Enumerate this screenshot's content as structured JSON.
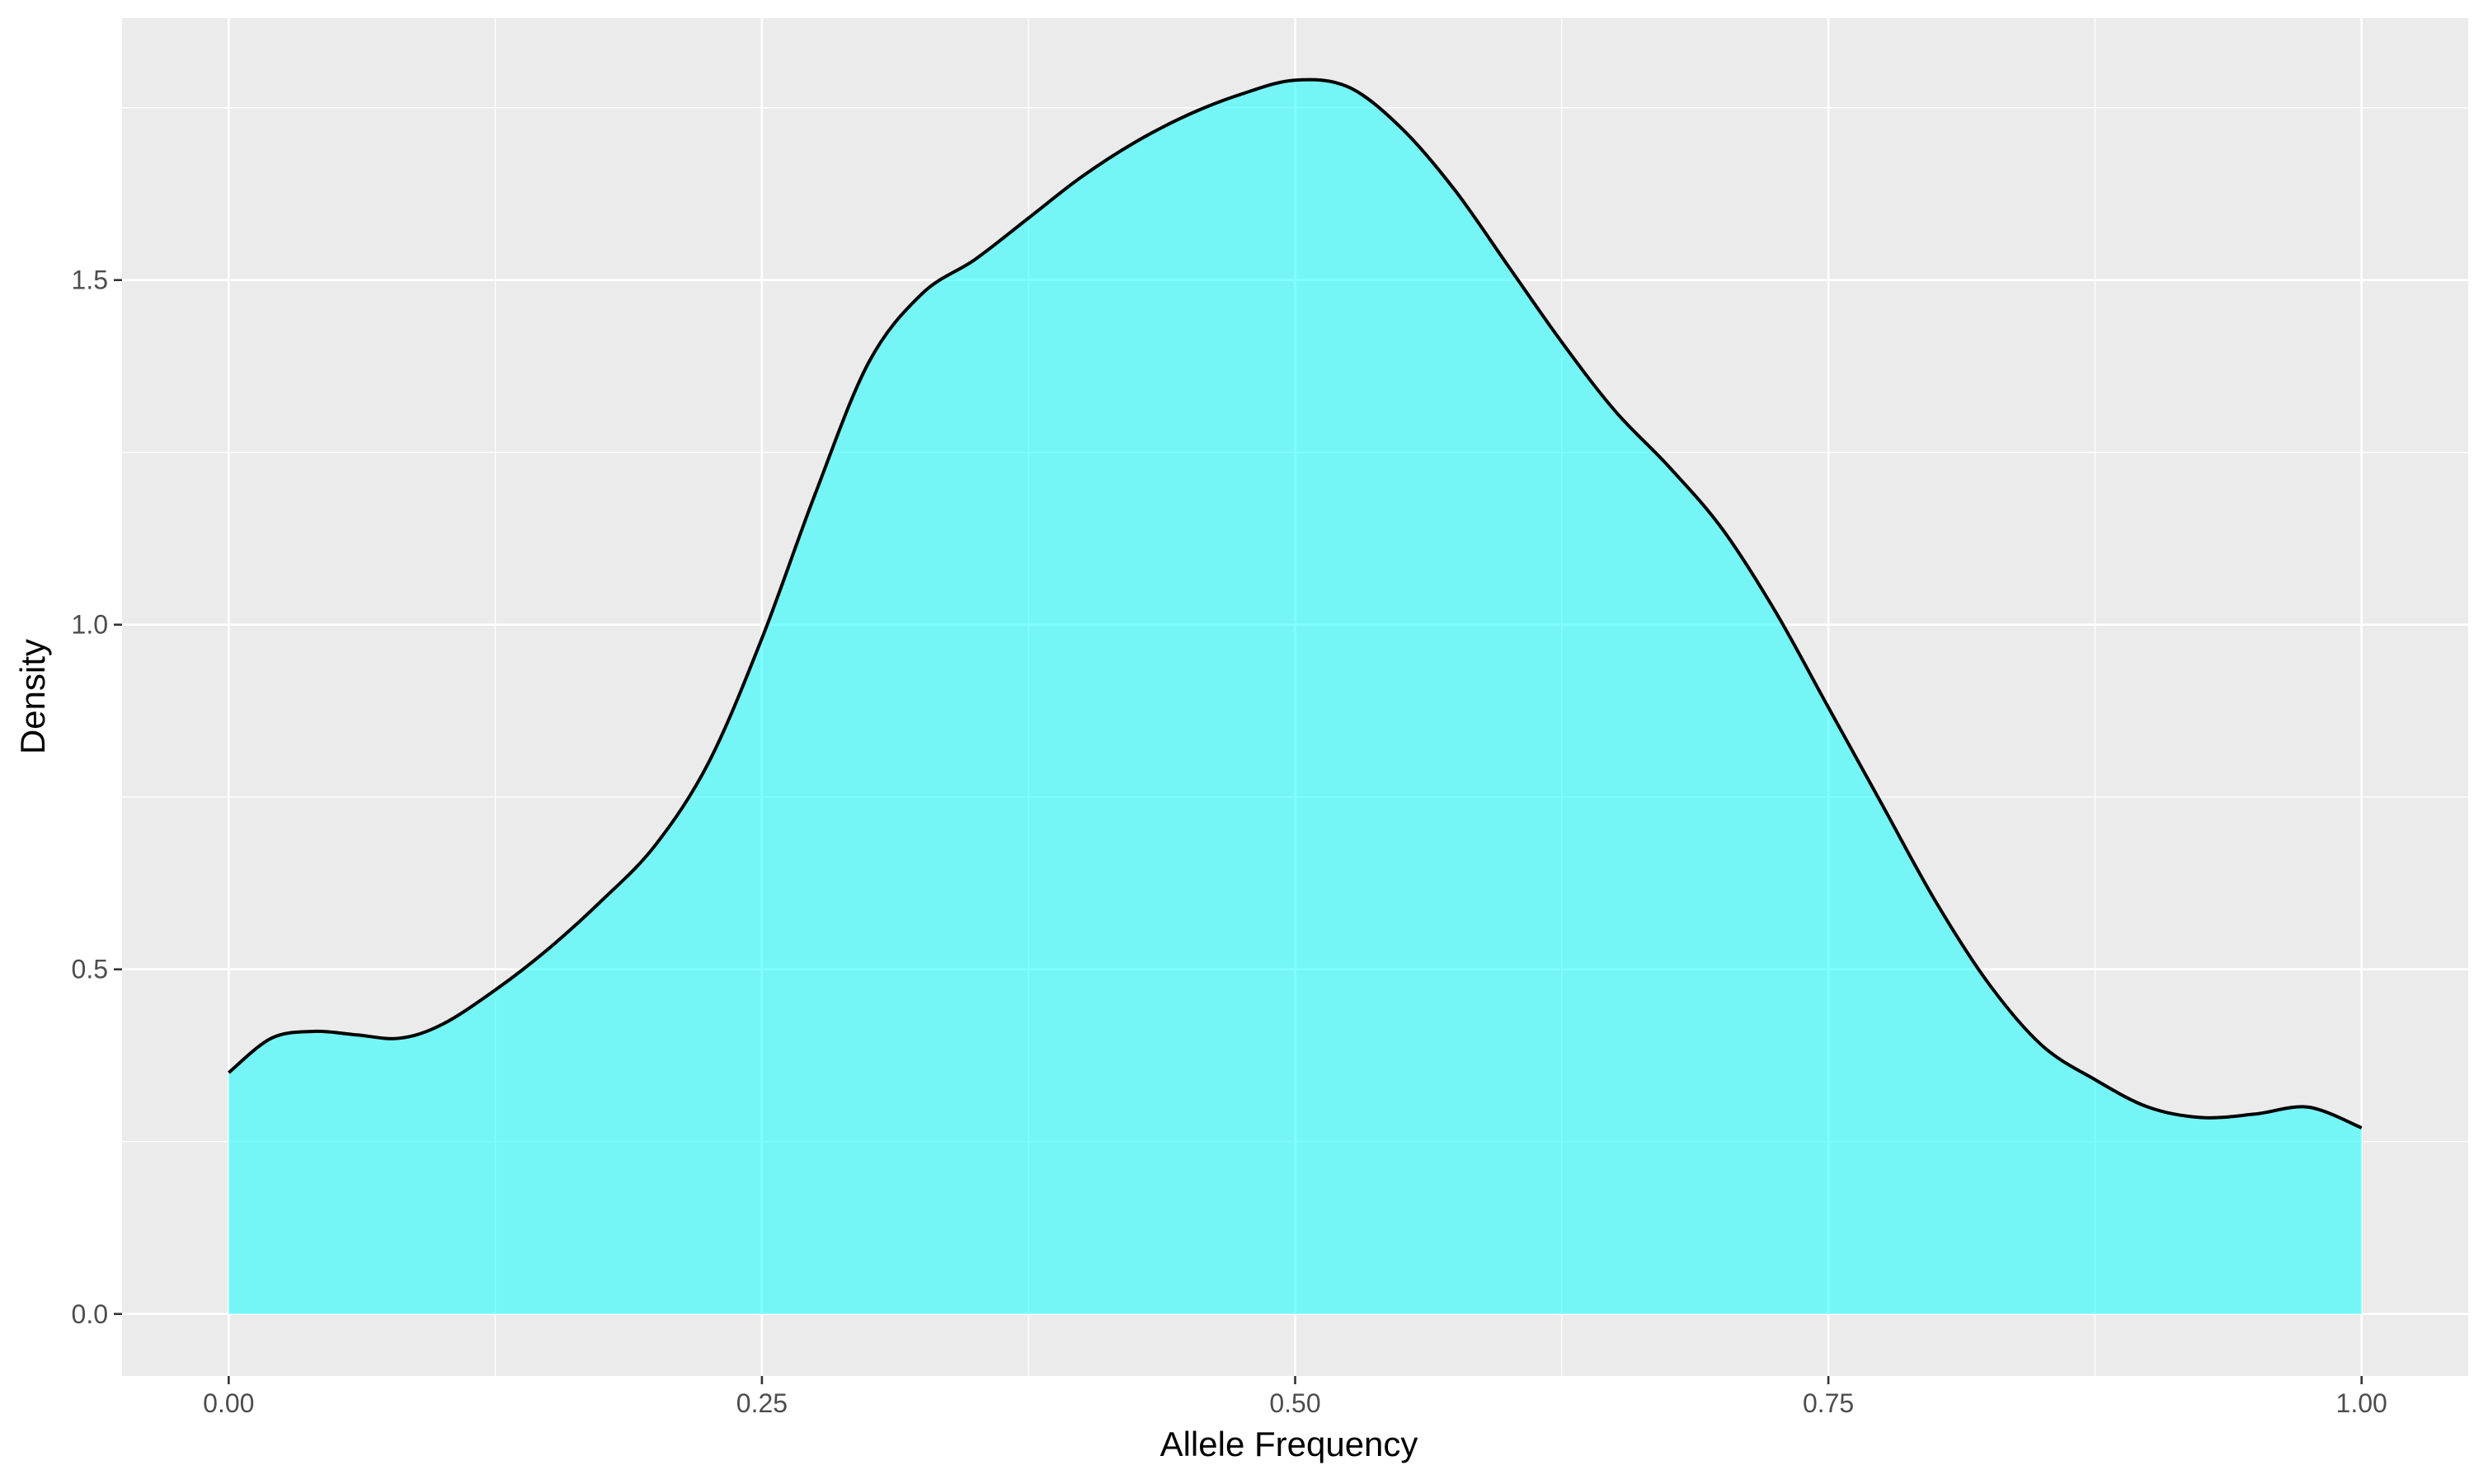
{
  "chart_data": {
    "type": "area",
    "title": "",
    "xlabel": "Allele Frequency",
    "ylabel": "Density",
    "xlim": [
      -0.05,
      1.05
    ],
    "ylim": [
      -0.09,
      1.88
    ],
    "xticks": [
      0,
      0.25,
      0.5,
      0.75,
      1
    ],
    "xtick_labels": [
      "0.00",
      "0.25",
      "0.50",
      "0.75",
      "1.00"
    ],
    "yticks": [
      0,
      0.5,
      1,
      1.5
    ],
    "ytick_labels": [
      "0.0",
      "0.5",
      "1.0",
      "1.5"
    ],
    "x_minor": [
      0.125,
      0.375,
      0.625,
      0.875
    ],
    "y_minor": [
      0.25,
      0.75,
      1.25,
      1.75
    ],
    "grid": true,
    "legend": "none",
    "fill_color": "#00ffff",
    "fill_opacity": 0.5,
    "line_color": "#000000",
    "panel_color": "#ebebeb",
    "x": [
      0,
      0.02,
      0.04,
      0.06,
      0.08,
      0.1,
      0.125,
      0.15,
      0.175,
      0.2,
      0.225,
      0.25,
      0.275,
      0.3,
      0.325,
      0.35,
      0.375,
      0.4,
      0.425,
      0.45,
      0.475,
      0.5,
      0.525,
      0.55,
      0.575,
      0.6,
      0.625,
      0.65,
      0.675,
      0.7,
      0.725,
      0.75,
      0.775,
      0.8,
      0.825,
      0.85,
      0.875,
      0.9,
      0.925,
      0.95,
      0.975,
      1.0
    ],
    "y": [
      0.35,
      0.4,
      0.41,
      0.405,
      0.4,
      0.42,
      0.47,
      0.53,
      0.6,
      0.68,
      0.8,
      0.98,
      1.19,
      1.38,
      1.48,
      1.53,
      1.59,
      1.65,
      1.7,
      1.74,
      1.77,
      1.79,
      1.78,
      1.72,
      1.63,
      1.52,
      1.41,
      1.31,
      1.23,
      1.14,
      1.02,
      0.88,
      0.74,
      0.6,
      0.48,
      0.39,
      0.34,
      0.3,
      0.285,
      0.29,
      0.3,
      0.27
    ]
  }
}
